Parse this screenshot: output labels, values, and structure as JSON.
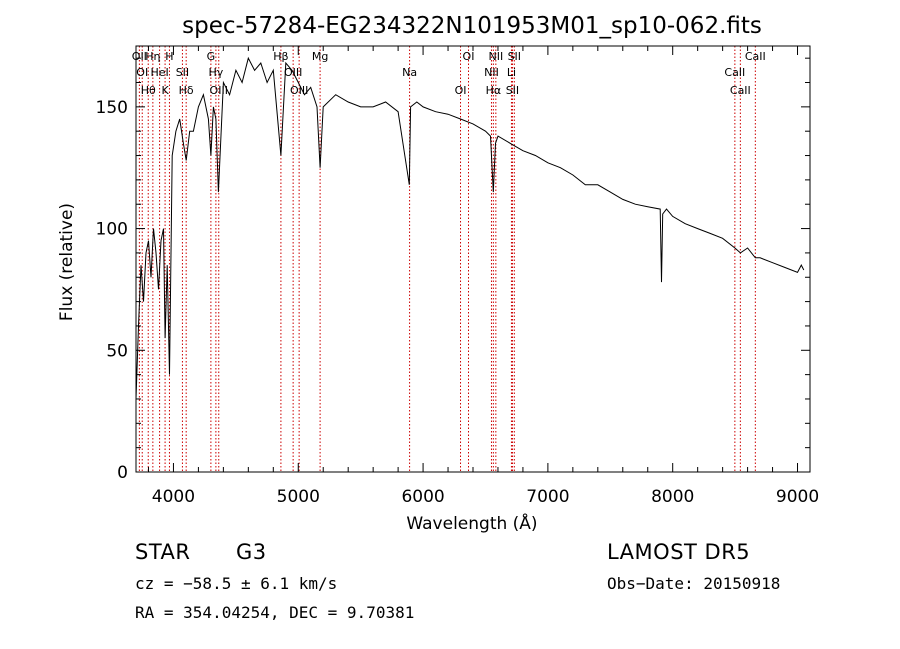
{
  "chart_data": {
    "type": "line",
    "title": "spec-57284-EG234322N101953M01_sp10-062.fits",
    "xlabel": "Wavelength (Å)",
    "ylabel": "Flux (relative)",
    "xlim": [
      3700,
      9100
    ],
    "ylim": [
      0,
      175
    ],
    "xticks": [
      4000,
      5000,
      6000,
      7000,
      8000,
      9000
    ],
    "yticks": [
      0,
      50,
      100,
      150
    ],
    "grid": false,
    "line_color": "#000000",
    "marker_color": "#cc0000",
    "series": [
      {
        "x": [
          3700,
          3720,
          3740,
          3760,
          3780,
          3800,
          3820,
          3840,
          3860,
          3880,
          3900,
          3920,
          3933,
          3950,
          3968,
          3990,
          4020,
          4050,
          4080,
          4102,
          4130,
          4160,
          4200,
          4240,
          4280,
          4300,
          4320,
          4340,
          4360,
          4400,
          4450,
          4500,
          4550,
          4600,
          4650,
          4700,
          4750,
          4800,
          4861,
          4900,
          4950,
          5000,
          5050,
          5100,
          5150,
          5175,
          5200,
          5300,
          5400,
          5500,
          5600,
          5700,
          5800,
          5890,
          5900,
          5950,
          6000,
          6100,
          6200,
          6300,
          6400,
          6500,
          6540,
          6563,
          6580,
          6600,
          6700,
          6800,
          6900,
          7000,
          7100,
          7200,
          7300,
          7400,
          7500,
          7600,
          7700,
          7800,
          7900,
          7910,
          7920,
          7950,
          8000,
          8100,
          8200,
          8300,
          8400,
          8498,
          8542,
          8600,
          8662,
          8700,
          8800,
          8900,
          9000,
          9030,
          9050
        ],
        "y": [
          30,
          60,
          85,
          70,
          90,
          95,
          80,
          100,
          90,
          75,
          95,
          100,
          55,
          85,
          40,
          130,
          140,
          145,
          135,
          128,
          140,
          140,
          150,
          155,
          145,
          130,
          150,
          145,
          115,
          160,
          155,
          165,
          160,
          170,
          165,
          168,
          160,
          165,
          130,
          168,
          165,
          160,
          155,
          158,
          150,
          125,
          150,
          155,
          152,
          150,
          150,
          152,
          148,
          118,
          150,
          152,
          150,
          148,
          147,
          145,
          143,
          140,
          138,
          115,
          135,
          138,
          135,
          132,
          130,
          127,
          125,
          122,
          118,
          118,
          115,
          112,
          110,
          109,
          108,
          78,
          106,
          108,
          105,
          102,
          100,
          98,
          96,
          92,
          90,
          92,
          88,
          88,
          86,
          84,
          82,
          85,
          83
        ]
      }
    ],
    "lines": [
      {
        "wavelength": 3727,
        "label": "OII"
      },
      {
        "wavelength": 3750,
        "label": "OI"
      },
      {
        "wavelength": 3798,
        "label": "Hθ"
      },
      {
        "wavelength": 3835,
        "label": "Hη"
      },
      {
        "wavelength": 3889,
        "label": "HeI"
      },
      {
        "wavelength": 3933,
        "label": "K"
      },
      {
        "wavelength": 3968,
        "label": "H"
      },
      {
        "wavelength": 4072,
        "label": "SII"
      },
      {
        "wavelength": 4102,
        "label": "Hδ"
      },
      {
        "wavelength": 4300,
        "label": "G"
      },
      {
        "wavelength": 4340,
        "label": "Hγ"
      },
      {
        "wavelength": 4363,
        "label": "OIII"
      },
      {
        "wavelength": 4861,
        "label": "Hβ"
      },
      {
        "wavelength": 4959,
        "label": "OIII"
      },
      {
        "wavelength": 5007,
        "label": "OIII"
      },
      {
        "wavelength": 5175,
        "label": "Mg"
      },
      {
        "wavelength": 5892,
        "label": "Na"
      },
      {
        "wavelength": 6300,
        "label": "OI"
      },
      {
        "wavelength": 6364,
        "label": "OI"
      },
      {
        "wavelength": 6548,
        "label": "NII"
      },
      {
        "wavelength": 6563,
        "label": "Hα"
      },
      {
        "wavelength": 6583,
        "label": "NII"
      },
      {
        "wavelength": 6708,
        "label": "Li"
      },
      {
        "wavelength": 6716,
        "label": "SII"
      },
      {
        "wavelength": 6731,
        "label": "SII"
      },
      {
        "wavelength": 8498,
        "label": "CaII"
      },
      {
        "wavelength": 8542,
        "label": "CaII"
      },
      {
        "wavelength": 8662,
        "label": "CaII"
      }
    ]
  },
  "info": {
    "object_class": "STAR",
    "subclass": "G3",
    "survey": "LAMOST DR5",
    "cz": "cz = −58.5 ± 6.1 km/s",
    "obs_date": "Obs−Date: 20150918",
    "radec": "RA = 354.04254, DEC =   9.70381"
  }
}
